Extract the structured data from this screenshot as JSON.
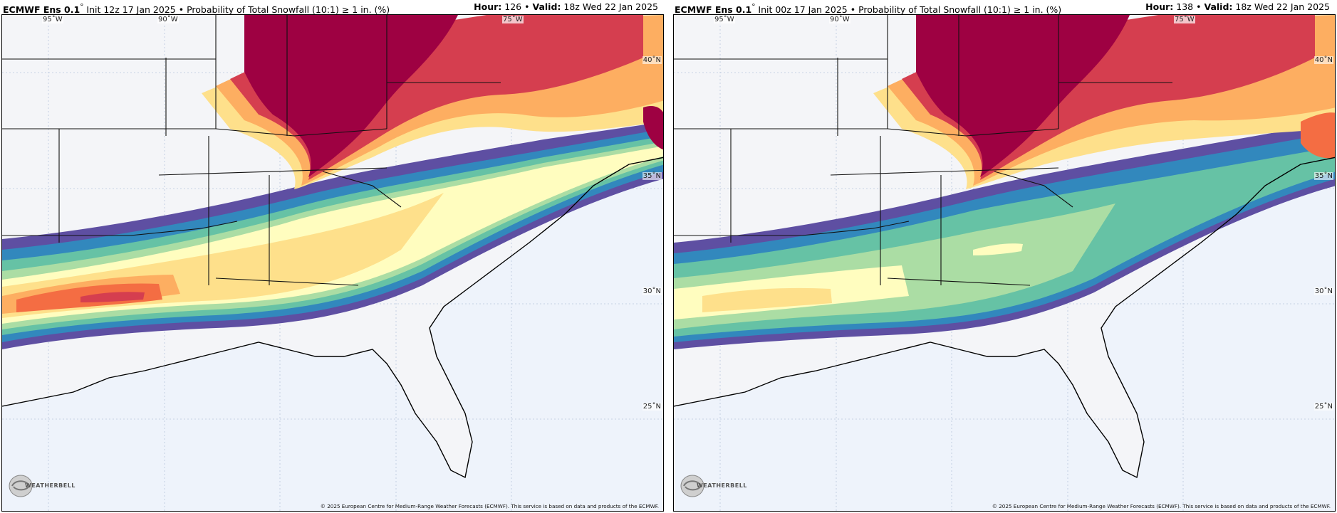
{
  "panels": [
    {
      "model": "ECMWF Ens 0.1",
      "degree_mark": "°",
      "init": "Init 12z 17 Jan 2025",
      "separator": "•",
      "product": "Probability of Total Snowfall (10:1) ≥ 1 in. (%)",
      "hour_label": "Hour:",
      "hour_value": "126",
      "valid_label": "Valid:",
      "valid_value": "18z Wed 22 Jan 2025"
    },
    {
      "model": "ECMWF Ens 0.1",
      "degree_mark": "°",
      "init": "Init 00z 17 Jan 2025",
      "separator": "•",
      "product": "Probability of Total Snowfall (10:1) ≥ 1 in. (%)",
      "hour_label": "Hour:",
      "hour_value": "138",
      "valid_label": "Valid:",
      "valid_value": "18z Wed 22 Jan 2025"
    }
  ],
  "map": {
    "lon_labels": [
      "95˚W",
      "90˚W",
      "75˚W"
    ],
    "lat_labels": [
      "40˚N",
      "35˚N",
      "30˚N",
      "25˚N"
    ],
    "copyright": "© 2025 European Centre for Medium-Range Weather Forecasts (ECMWF). This service is based on data and products of the ECMWF.",
    "logo_text": "WEATHERBELL",
    "colors": {
      "ocean": "#eef3fb",
      "land": "#f4f5f8",
      "purple": "#5e4fa2",
      "blue": "#3288bd",
      "teal": "#66c2a5",
      "green": "#abdda4",
      "yellow": "#fffdbf",
      "tan": "#fee08b",
      "orange": "#fdae61",
      "dark_orange": "#f46d43",
      "red": "#d53e4f",
      "maroon": "#9e0142"
    }
  }
}
